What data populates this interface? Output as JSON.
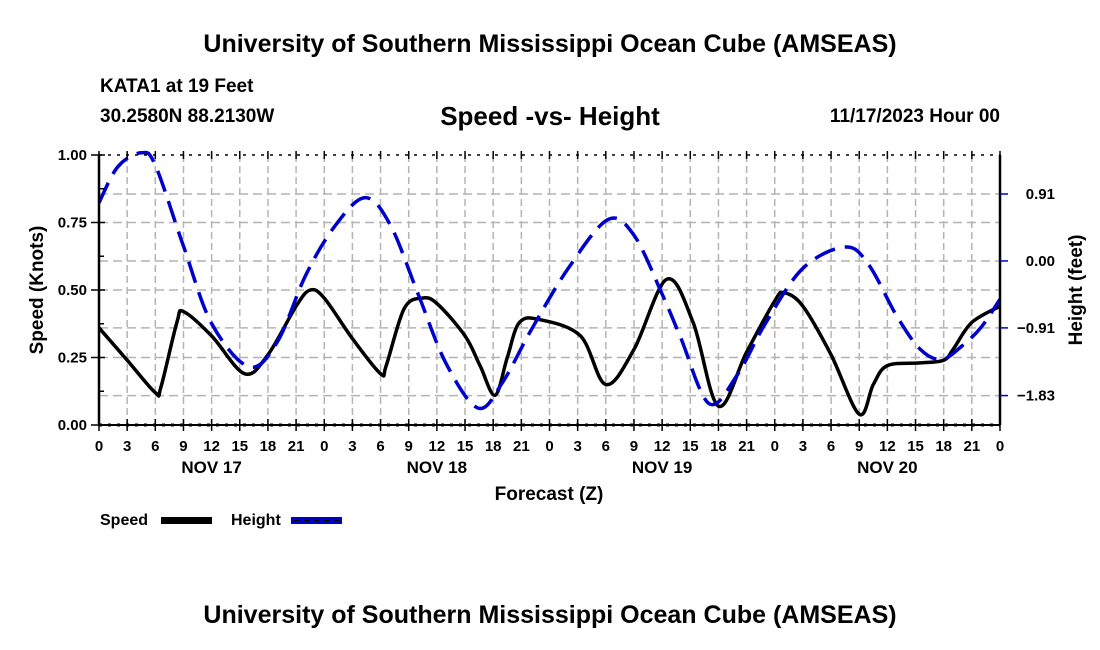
{
  "header": {
    "main_title": "University of Southern Mississippi Ocean Cube (AMSEAS)",
    "station": "KATA1 at 19 Feet",
    "coordinates": "30.2580N  88.2130W",
    "plot_title": "Speed -vs- Height",
    "run_time": "11/17/2023 Hour 00"
  },
  "footer": {
    "title": "University of Southern Mississippi Ocean Cube (AMSEAS)"
  },
  "legend": {
    "items": [
      {
        "label": "Speed",
        "color": "#000000",
        "style": "solid"
      },
      {
        "label": "Height",
        "color": "#0000cc",
        "style": "dashed"
      }
    ],
    "placement": "bottom-left"
  },
  "chart_data": {
    "type": "line",
    "title": "Speed -vs- Height",
    "xlabel": "Forecast (Z)",
    "ylabel": "Speed (Knots)",
    "y2label": "Height (feet)",
    "x_unit": "forecast hour",
    "xlim": [
      0,
      96
    ],
    "ylim": [
      0,
      1
    ],
    "y2lim": [
      -2.23,
      1.44
    ],
    "grid": true,
    "x_ticks": [
      0,
      3,
      6,
      9,
      12,
      15,
      18,
      21,
      24,
      27,
      30,
      33,
      36,
      39,
      42,
      45,
      48,
      51,
      54,
      57,
      60,
      63,
      66,
      69,
      72,
      75,
      78,
      81,
      84,
      87,
      90,
      93,
      96
    ],
    "x_tick_labels": [
      "0",
      "3",
      "6",
      "9",
      "12",
      "15",
      "18",
      "21",
      "0",
      "3",
      "6",
      "9",
      "12",
      "15",
      "18",
      "21",
      "0",
      "3",
      "6",
      "9",
      "12",
      "15",
      "18",
      "21",
      "0",
      "3",
      "6",
      "9",
      "12",
      "15",
      "18",
      "21",
      "0"
    ],
    "day_labels": [
      {
        "label": "NOV 17",
        "hour": 12
      },
      {
        "label": "NOV 18",
        "hour": 36
      },
      {
        "label": "NOV 19",
        "hour": 60
      },
      {
        "label": "NOV 20",
        "hour": 84
      }
    ],
    "y_ticks": [
      0.0,
      0.25,
      0.5,
      0.75,
      1.0
    ],
    "y_tick_labels": [
      "0.00",
      "0.25",
      "0.50",
      "0.75",
      "1.00"
    ],
    "y_minor_ticks": [
      0.125,
      0.375,
      0.625,
      0.875
    ],
    "y2_ticks": [
      0.91,
      0.0,
      -0.91,
      -1.83
    ],
    "y2_tick_labels": [
      "0.91",
      "0.00",
      "−0.91",
      "−1.83"
    ],
    "series": [
      {
        "name": "Speed",
        "axis": "left",
        "color": "#000000",
        "x": [
          0,
          3,
          6,
          6.6,
          8.3,
          9,
          12,
          15.5,
          18,
          21,
          22.5,
          24,
          27,
          30,
          30.6,
          32.5,
          34.4,
          36,
          39,
          40.6,
          42.2,
          43.5,
          44.8,
          47,
          51.3,
          54,
          57,
          60.5,
          63.3,
          66,
          69,
          72,
          73,
          75,
          78,
          81,
          82.5,
          84,
          87.5,
          90,
          91,
          93,
          96
        ],
        "values": [
          0.36,
          0.24,
          0.12,
          0.14,
          0.38,
          0.42,
          0.33,
          0.19,
          0.26,
          0.44,
          0.5,
          0.47,
          0.32,
          0.19,
          0.22,
          0.43,
          0.47,
          0.45,
          0.33,
          0.22,
          0.11,
          0.25,
          0.38,
          0.39,
          0.33,
          0.15,
          0.28,
          0.54,
          0.38,
          0.07,
          0.27,
          0.46,
          0.49,
          0.44,
          0.26,
          0.04,
          0.15,
          0.22,
          0.23,
          0.24,
          0.28,
          0.38,
          0.44
        ]
      },
      {
        "name": "Height",
        "axis": "right",
        "color": "#0000cc",
        "x": [
          0,
          2,
          4.5,
          6,
          9,
          12,
          16,
          19,
          22,
          25,
          28.3,
          31,
          34,
          37,
          40.4,
          43,
          46,
          50,
          54.2,
          57,
          60,
          62,
          65,
          68,
          71,
          75,
          79.5,
          82,
          85,
          87.5,
          89.8,
          92,
          94,
          96
        ],
        "values": [
          0.79,
          1.28,
          1.47,
          1.3,
          0.2,
          -0.85,
          -1.44,
          -1.1,
          -0.2,
          0.45,
          0.86,
          0.5,
          -0.45,
          -1.4,
          -2.0,
          -1.65,
          -0.95,
          -0.1,
          0.56,
          0.35,
          -0.45,
          -1.05,
          -1.94,
          -1.55,
          -0.85,
          -0.1,
          0.19,
          -0.05,
          -0.75,
          -1.2,
          -1.34,
          -1.15,
          -0.9,
          -0.52
        ]
      }
    ]
  }
}
